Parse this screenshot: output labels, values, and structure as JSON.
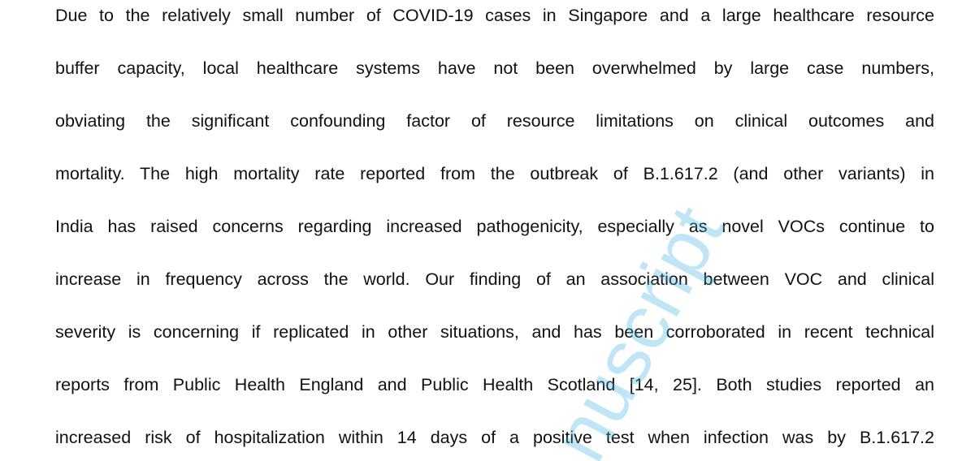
{
  "paragraph": {
    "lines": [
      "Due to the relatively small number of COVID-19 cases in Singapore and a large healthcare resource",
      "buffer capacity, local healthcare systems have not been overwhelmed by large case numbers,",
      "obviating the significant confounding factor of resource limitations on clinical outcomes and",
      "mortality. The high mortality rate reported from the outbreak of B.1.617.2 (and other variants) in",
      "India has raised concerns regarding increased pathogenicity, especially as novel VOCs continue to",
      "increase in frequency across the world. Our finding of an association between VOC and clinical",
      "severity is concerning if replicated in other situations, and has been corroborated in recent technical",
      "reports from Public Health England and Public Health Scotland [14, 25]. Both studies reported an",
      "increased risk of hospitalization within 14 days of a positive test when infection was by B.1.617.2"
    ]
  },
  "watermark": {
    "text": "nuscript",
    "color": "#3ab0e0"
  }
}
